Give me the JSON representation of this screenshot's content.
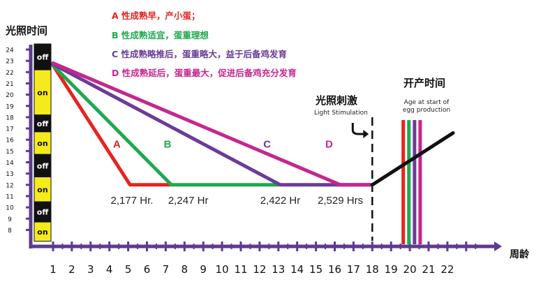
{
  "chart_data": {
    "type": "line",
    "ylabel": "光照时间",
    "xlabel": "周龄",
    "y_ticks": [
      "24",
      "23",
      "22",
      "21",
      "20",
      "19",
      "18",
      "17",
      "16",
      "15",
      "14",
      "13",
      "12",
      "11",
      "10",
      "9",
      "8"
    ],
    "x_ticks": [
      "1",
      "2",
      "3",
      "4",
      "5",
      "6",
      "7",
      "8",
      "9",
      "10",
      "11",
      "12",
      "13",
      "14",
      "15",
      "16",
      "17",
      "18",
      "19",
      "20",
      "21",
      "22"
    ],
    "xlim": [
      1,
      22.7
    ],
    "ylim": [
      7,
      24.5
    ],
    "onoff_bars": [
      {
        "label": "off",
        "from": 24.5,
        "to": 22.2
      },
      {
        "label": "on",
        "from": 22.2,
        "to": 18.2
      },
      {
        "label": "off",
        "from": 18.2,
        "to": 16.7
      },
      {
        "label": "on",
        "from": 16.7,
        "to": 14.7
      },
      {
        "label": "off",
        "from": 14.7,
        "to": 12.7
      },
      {
        "label": "on",
        "from": 12.7,
        "to": 10.5
      },
      {
        "label": "off",
        "from": 10.5,
        "to": 8.7
      },
      {
        "label": "on",
        "from": 8.7,
        "to": 7.0
      }
    ],
    "series": [
      {
        "name": "A",
        "color": "#e8231f",
        "points": [
          [
            1,
            22.6
          ],
          [
            5.1,
            12.0
          ],
          [
            7.2,
            12.0
          ]
        ]
      },
      {
        "name": "B",
        "color": "#1fa84f",
        "points": [
          [
            1,
            22.6
          ],
          [
            7.3,
            12.0
          ],
          [
            13.0,
            12.0
          ]
        ]
      },
      {
        "name": "C",
        "color": "#6a3c97",
        "points": [
          [
            1,
            22.7
          ],
          [
            13.1,
            12.0
          ],
          [
            18.0,
            12.0
          ]
        ]
      },
      {
        "name": "D",
        "color": "#c6268f",
        "points": [
          [
            1,
            22.8
          ],
          [
            16.3,
            12.0
          ],
          [
            18.0,
            12.0
          ]
        ]
      },
      {
        "name": "",
        "color": "#111111",
        "points": [
          [
            18.0,
            12.0
          ],
          [
            22.3,
            16.6
          ]
        ]
      }
    ],
    "series_labels": [
      {
        "text": "A",
        "color": "#e8231f",
        "x": 4.4,
        "y": 15.3
      },
      {
        "text": "B",
        "color": "#1fa84f",
        "x": 7.1,
        "y": 15.3
      },
      {
        "text": "C",
        "color": "#6a3c97",
        "x": 12.4,
        "y": 15.3
      },
      {
        "text": "D",
        "color": "#c6268f",
        "x": 15.7,
        "y": 15.3
      }
    ],
    "hours_labels": [
      {
        "text": "2,177 Hr.",
        "x": 5.2
      },
      {
        "text": "2,247 Hr",
        "x": 8.2
      },
      {
        "text": "2,422 Hr",
        "x": 13.1
      },
      {
        "text": "2,529 Hrs",
        "x": 16.3
      }
    ],
    "light_stimulation_week": 18.0,
    "egg_start_bars": [
      {
        "x": 19.65,
        "color": "#e8231f"
      },
      {
        "x": 19.95,
        "color": "#1fa84f"
      },
      {
        "x": 20.25,
        "color": "#6a3c97"
      },
      {
        "x": 20.55,
        "color": "#c6268f"
      }
    ]
  },
  "legend": [
    {
      "text": "A 性成熟早，产小蛋；",
      "color": "#e8231f"
    },
    {
      "text": "B 性成熟适宜，蛋重理想",
      "color": "#1fa84f"
    },
    {
      "text": "C 性成熟略推后，蛋重略大，益于后备鸡发育",
      "color": "#6a3c97"
    },
    {
      "text": "D 性成熟延后，蛋重最大，促进后备鸡充分发育",
      "color": "#c6268f"
    }
  ],
  "annotations": {
    "light_cn": "光照刺激",
    "light_en": "Light Stimulation",
    "open_cn": "开产时间",
    "open_en": "Age at start of egg production"
  }
}
